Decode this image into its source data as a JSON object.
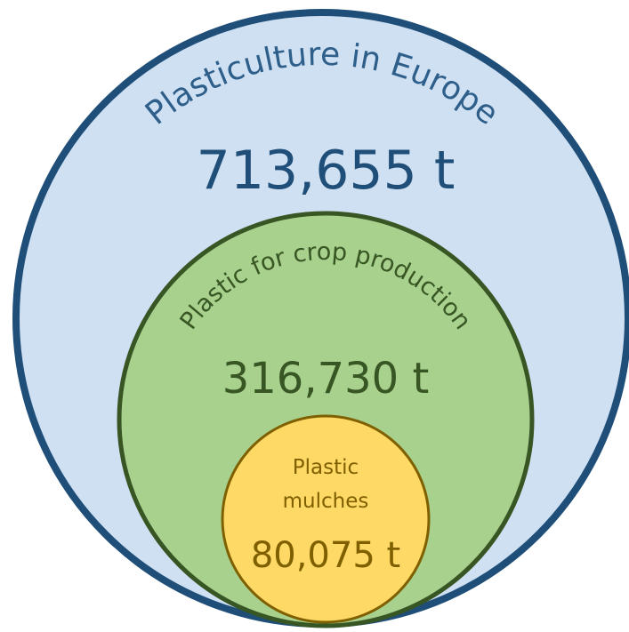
{
  "nodes": [
    {
      "label": "Plasticulture in Europe",
      "value": "713,655 t"
    },
    {
      "label": "Plastic for crop production",
      "value": "316,730 t"
    },
    {
      "label_lines": [
        "Plastic",
        "mulches"
      ],
      "value": "80,075 t"
    }
  ]
}
